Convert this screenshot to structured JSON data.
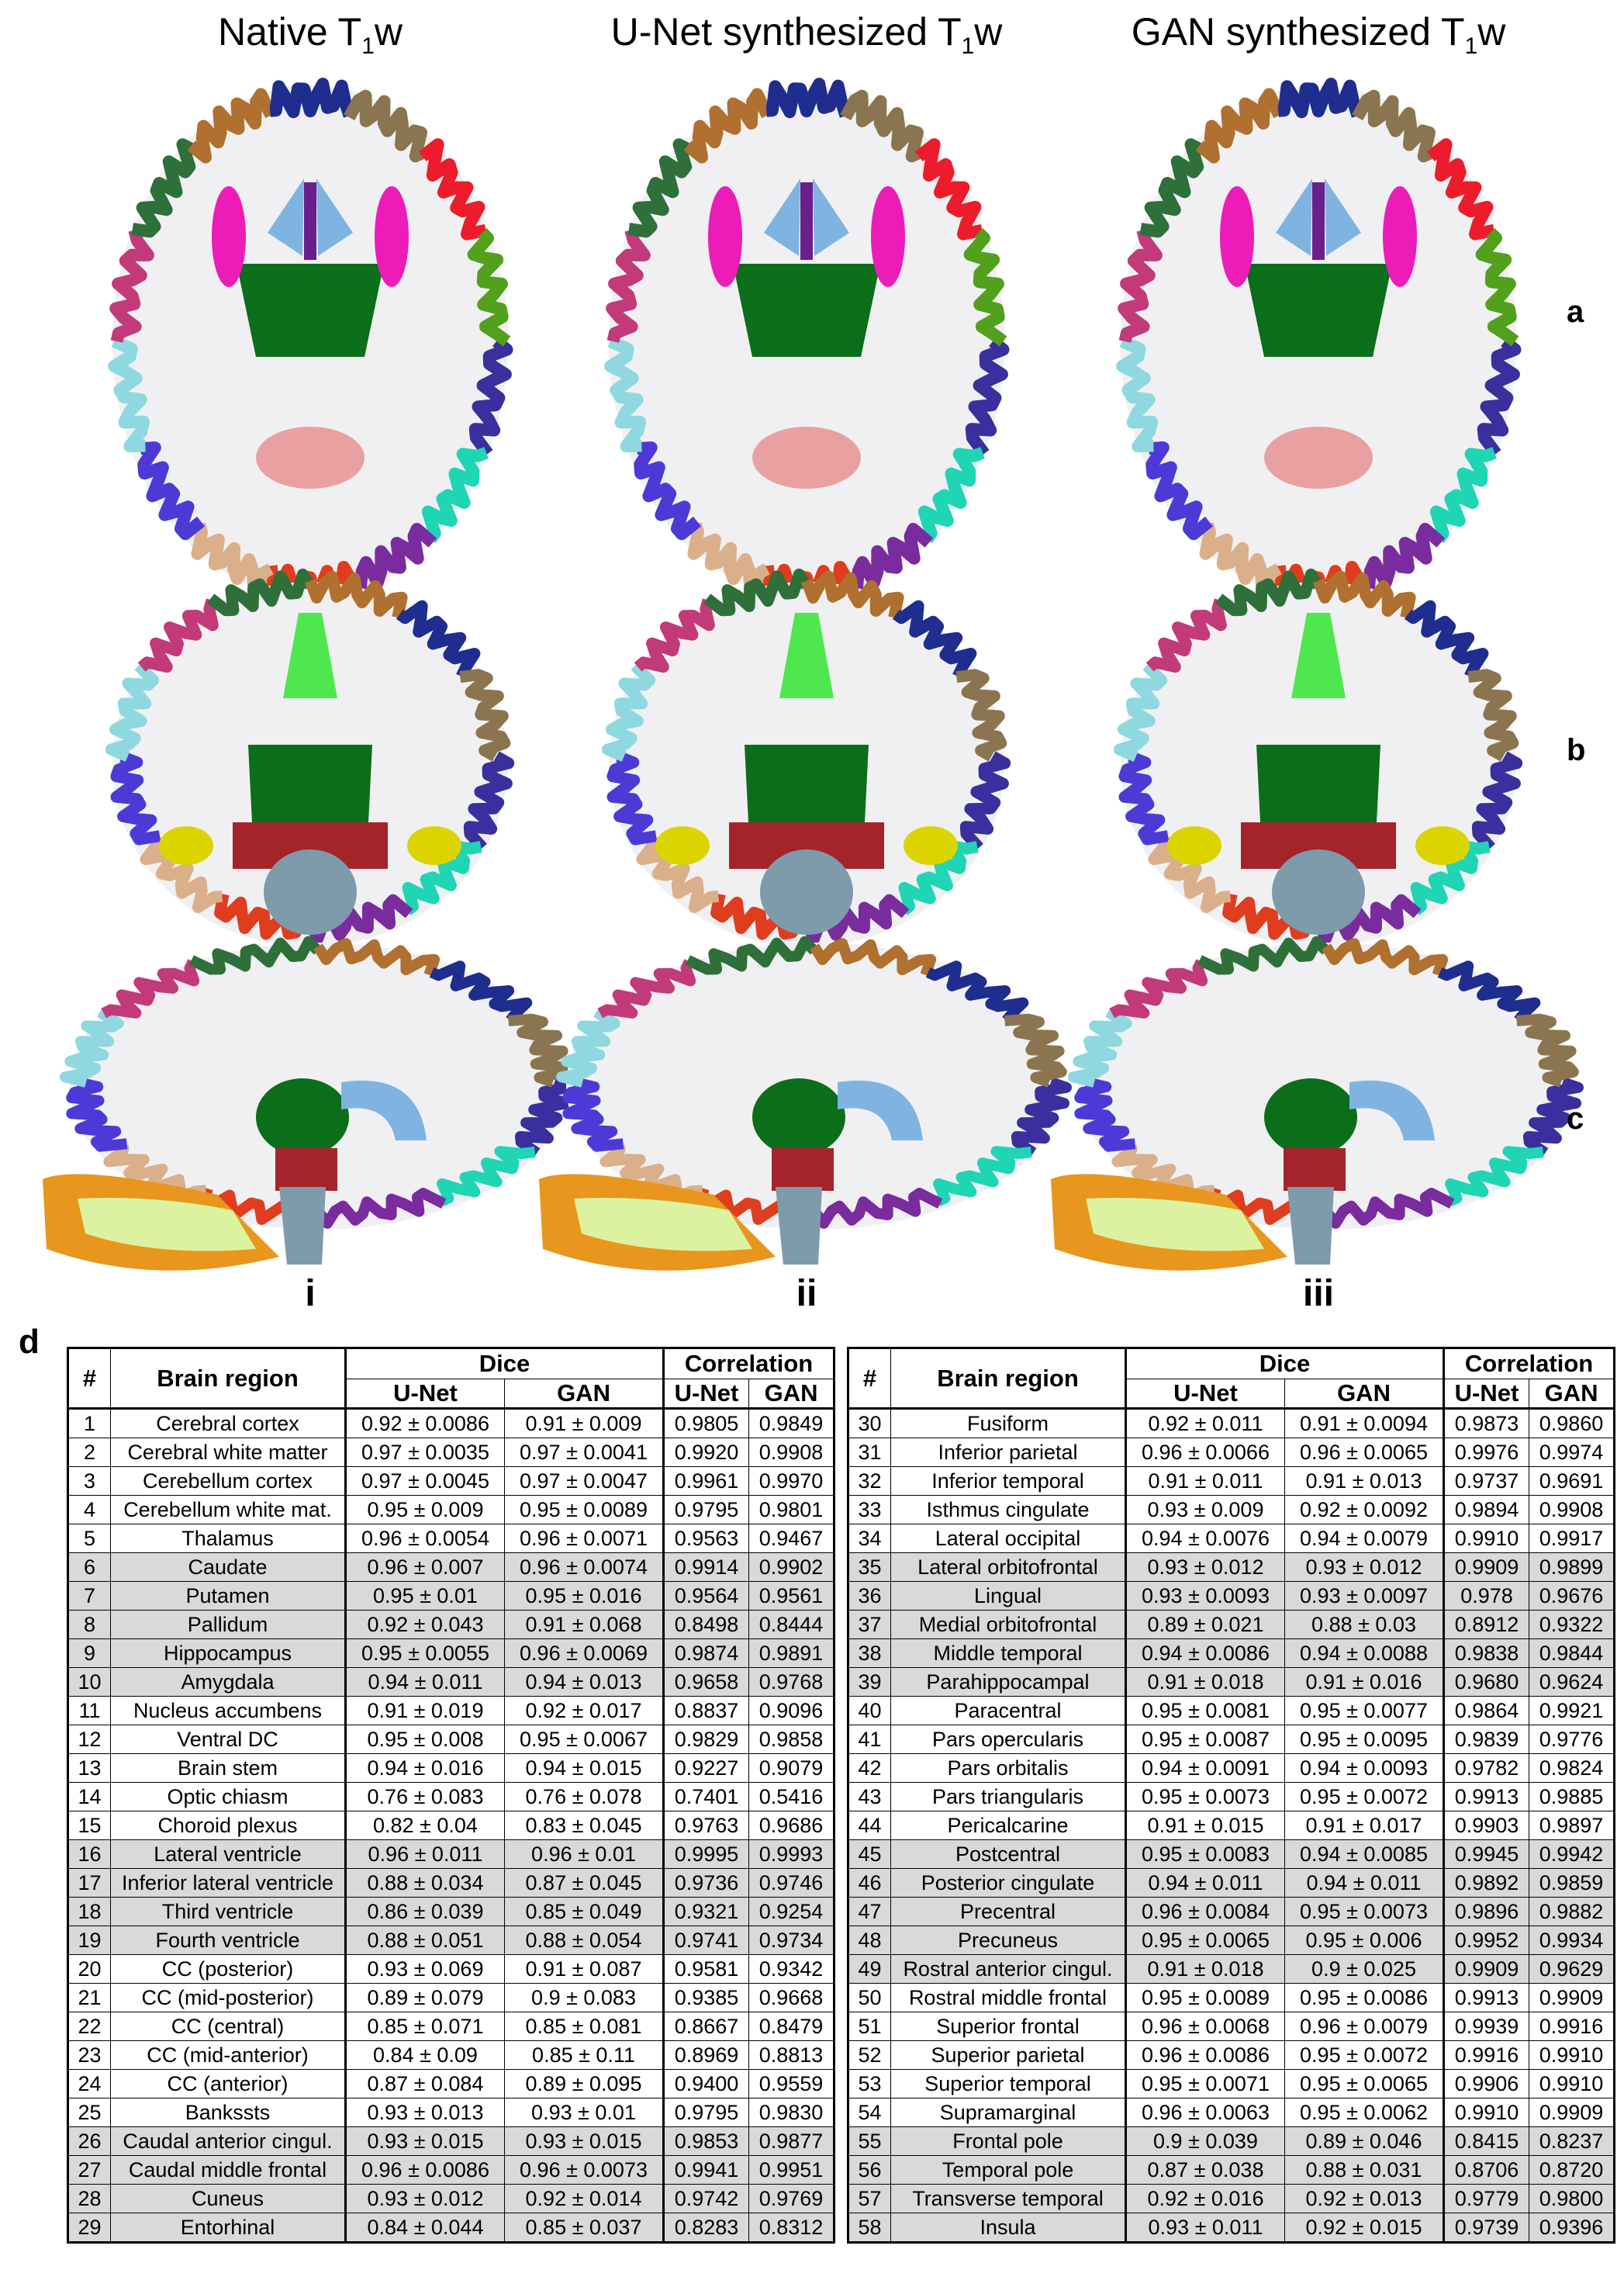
{
  "columns": [
    {
      "title": "Native T",
      "sub": "1",
      "suffix": "w",
      "roman": "i"
    },
    {
      "title": "U-Net synthesized T",
      "sub": "1",
      "suffix": "w",
      "roman": "ii"
    },
    {
      "title": "GAN synthesized T",
      "sub": "1",
      "suffix": "w",
      "roman": "iii"
    }
  ],
  "rows": [
    {
      "letter": "a",
      "view": "axial"
    },
    {
      "letter": "b",
      "view": "coronal"
    },
    {
      "letter": "c",
      "view": "sagittal"
    }
  ],
  "panel_d_label": "d",
  "table": {
    "headers": {
      "num": "#",
      "region": "Brain region",
      "dice": "Dice",
      "correlation": "Correlation",
      "unet": "U-Net",
      "gan": "GAN"
    },
    "left": [
      {
        "n": "1",
        "region": "Cerebral cortex",
        "dice_unet": "0.92 ± 0.0086",
        "dice_gan": "0.91 ± 0.009",
        "corr_unet": "0.9805",
        "corr_gan": "0.9849",
        "shaded": false
      },
      {
        "n": "2",
        "region": "Cerebral white matter",
        "dice_unet": "0.97 ± 0.0035",
        "dice_gan": "0.97 ± 0.0041",
        "corr_unet": "0.9920",
        "corr_gan": "0.9908",
        "shaded": false
      },
      {
        "n": "3",
        "region": "Cerebellum cortex",
        "dice_unet": "0.97 ± 0.0045",
        "dice_gan": "0.97 ± 0.0047",
        "corr_unet": "0.9961",
        "corr_gan": "0.9970",
        "shaded": false
      },
      {
        "n": "4",
        "region": "Cerebellum white mat.",
        "dice_unet": "0.95 ± 0.009",
        "dice_gan": "0.95 ± 0.0089",
        "corr_unet": "0.9795",
        "corr_gan": "0.9801",
        "shaded": false
      },
      {
        "n": "5",
        "region": "Thalamus",
        "dice_unet": "0.96 ± 0.0054",
        "dice_gan": "0.96 ± 0.0071",
        "corr_unet": "0.9563",
        "corr_gan": "0.9467",
        "shaded": false
      },
      {
        "n": "6",
        "region": "Caudate",
        "dice_unet": "0.96 ± 0.007",
        "dice_gan": "0.96 ± 0.0074",
        "corr_unet": "0.9914",
        "corr_gan": "0.9902",
        "shaded": true
      },
      {
        "n": "7",
        "region": "Putamen",
        "dice_unet": "0.95 ± 0.01",
        "dice_gan": "0.95 ± 0.016",
        "corr_unet": "0.9564",
        "corr_gan": "0.9561",
        "shaded": true
      },
      {
        "n": "8",
        "region": "Pallidum",
        "dice_unet": "0.92 ± 0.043",
        "dice_gan": "0.91 ± 0.068",
        "corr_unet": "0.8498",
        "corr_gan": "0.8444",
        "shaded": true
      },
      {
        "n": "9",
        "region": "Hippocampus",
        "dice_unet": "0.95 ± 0.0055",
        "dice_gan": "0.96 ± 0.0069",
        "corr_unet": "0.9874",
        "corr_gan": "0.9891",
        "shaded": true
      },
      {
        "n": "10",
        "region": "Amygdala",
        "dice_unet": "0.94 ± 0.011",
        "dice_gan": "0.94 ± 0.013",
        "corr_unet": "0.9658",
        "corr_gan": "0.9768",
        "shaded": true
      },
      {
        "n": "11",
        "region": "Nucleus accumbens",
        "dice_unet": "0.91 ± 0.019",
        "dice_gan": "0.92 ± 0.017",
        "corr_unet": "0.8837",
        "corr_gan": "0.9096",
        "shaded": false
      },
      {
        "n": "12",
        "region": "Ventral DC",
        "dice_unet": "0.95 ± 0.008",
        "dice_gan": "0.95 ± 0.0067",
        "corr_unet": "0.9829",
        "corr_gan": "0.9858",
        "shaded": false
      },
      {
        "n": "13",
        "region": "Brain stem",
        "dice_unet": "0.94 ± 0.016",
        "dice_gan": "0.94 ± 0.015",
        "corr_unet": "0.9227",
        "corr_gan": "0.9079",
        "shaded": false
      },
      {
        "n": "14",
        "region": "Optic chiasm",
        "dice_unet": "0.76 ± 0.083",
        "dice_gan": "0.76 ± 0.078",
        "corr_unet": "0.7401",
        "corr_gan": "0.5416",
        "shaded": false
      },
      {
        "n": "15",
        "region": "Choroid plexus",
        "dice_unet": "0.82 ± 0.04",
        "dice_gan": "0.83 ± 0.045",
        "corr_unet": "0.9763",
        "corr_gan": "0.9686",
        "shaded": false
      },
      {
        "n": "16",
        "region": "Lateral ventricle",
        "dice_unet": "0.96 ± 0.011",
        "dice_gan": "0.96 ± 0.01",
        "corr_unet": "0.9995",
        "corr_gan": "0.9993",
        "shaded": true
      },
      {
        "n": "17",
        "region": "Inferior lateral ventricle",
        "dice_unet": "0.88 ± 0.034",
        "dice_gan": "0.87 ± 0.045",
        "corr_unet": "0.9736",
        "corr_gan": "0.9746",
        "shaded": true
      },
      {
        "n": "18",
        "region": "Third ventricle",
        "dice_unet": "0.86 ± 0.039",
        "dice_gan": "0.85 ± 0.049",
        "corr_unet": "0.9321",
        "corr_gan": "0.9254",
        "shaded": true
      },
      {
        "n": "19",
        "region": "Fourth ventricle",
        "dice_unet": "0.88 ± 0.051",
        "dice_gan": "0.88 ± 0.054",
        "corr_unet": "0.9741",
        "corr_gan": "0.9734",
        "shaded": true
      },
      {
        "n": "20",
        "region": "CC (posterior)",
        "dice_unet": "0.93 ± 0.069",
        "dice_gan": "0.91 ± 0.087",
        "corr_unet": "0.9581",
        "corr_gan": "0.9342",
        "shaded": false
      },
      {
        "n": "21",
        "region": "CC (mid-posterior)",
        "dice_unet": "0.89 ± 0.079",
        "dice_gan": "0.9 ± 0.083",
        "corr_unet": "0.9385",
        "corr_gan": "0.9668",
        "shaded": false
      },
      {
        "n": "22",
        "region": "CC (central)",
        "dice_unet": "0.85 ± 0.071",
        "dice_gan": "0.85 ± 0.081",
        "corr_unet": "0.8667",
        "corr_gan": "0.8479",
        "shaded": false
      },
      {
        "n": "23",
        "region": "CC (mid-anterior)",
        "dice_unet": "0.84 ± 0.09",
        "dice_gan": "0.85 ± 0.11",
        "corr_unet": "0.8969",
        "corr_gan": "0.8813",
        "shaded": false
      },
      {
        "n": "24",
        "region": "CC (anterior)",
        "dice_unet": "0.87 ± 0.084",
        "dice_gan": "0.89 ± 0.095",
        "corr_unet": "0.9400",
        "corr_gan": "0.9559",
        "shaded": false
      },
      {
        "n": "25",
        "region": "Bankssts",
        "dice_unet": "0.93 ± 0.013",
        "dice_gan": "0.93 ± 0.01",
        "corr_unet": "0.9795",
        "corr_gan": "0.9830",
        "shaded": false
      },
      {
        "n": "26",
        "region": "Caudal anterior cingul.",
        "dice_unet": "0.93 ± 0.015",
        "dice_gan": "0.93 ± 0.015",
        "corr_unet": "0.9853",
        "corr_gan": "0.9877",
        "shaded": true
      },
      {
        "n": "27",
        "region": "Caudal middle frontal",
        "dice_unet": "0.96 ± 0.0086",
        "dice_gan": "0.96 ± 0.0073",
        "corr_unet": "0.9941",
        "corr_gan": "0.9951",
        "shaded": true
      },
      {
        "n": "28",
        "region": "Cuneus",
        "dice_unet": "0.93 ± 0.012",
        "dice_gan": "0.92 ± 0.014",
        "corr_unet": "0.9742",
        "corr_gan": "0.9769",
        "shaded": true
      },
      {
        "n": "29",
        "region": "Entorhinal",
        "dice_unet": "0.84 ± 0.044",
        "dice_gan": "0.85 ± 0.037",
        "corr_unet": "0.8283",
        "corr_gan": "0.8312",
        "shaded": true
      }
    ],
    "right": [
      {
        "n": "30",
        "region": "Fusiform",
        "dice_unet": "0.92 ± 0.011",
        "dice_gan": "0.91 ± 0.0094",
        "corr_unet": "0.9873",
        "corr_gan": "0.9860",
        "shaded": false
      },
      {
        "n": "31",
        "region": "Inferior parietal",
        "dice_unet": "0.96 ± 0.0066",
        "dice_gan": "0.96 ± 0.0065",
        "corr_unet": "0.9976",
        "corr_gan": "0.9974",
        "shaded": false
      },
      {
        "n": "32",
        "region": "Inferior temporal",
        "dice_unet": "0.91 ± 0.011",
        "dice_gan": "0.91 ± 0.013",
        "corr_unet": "0.9737",
        "corr_gan": "0.9691",
        "shaded": false
      },
      {
        "n": "33",
        "region": "Isthmus cingulate",
        "dice_unet": "0.93 ± 0.009",
        "dice_gan": "0.92 ± 0.0092",
        "corr_unet": "0.9894",
        "corr_gan": "0.9908",
        "shaded": false
      },
      {
        "n": "34",
        "region": "Lateral occipital",
        "dice_unet": "0.94 ± 0.0076",
        "dice_gan": "0.94 ± 0.0079",
        "corr_unet": "0.9910",
        "corr_gan": "0.9917",
        "shaded": false
      },
      {
        "n": "35",
        "region": "Lateral orbitofrontal",
        "dice_unet": "0.93 ± 0.012",
        "dice_gan": "0.93 ± 0.012",
        "corr_unet": "0.9909",
        "corr_gan": "0.9899",
        "shaded": true
      },
      {
        "n": "36",
        "region": "Lingual",
        "dice_unet": "0.93 ± 0.0093",
        "dice_gan": "0.93 ± 0.0097",
        "corr_unet": "0.978",
        "corr_gan": "0.9676",
        "shaded": true
      },
      {
        "n": "37",
        "region": "Medial orbitofrontal",
        "dice_unet": "0.89 ± 0.021",
        "dice_gan": "0.88 ± 0.03",
        "corr_unet": "0.8912",
        "corr_gan": "0.9322",
        "shaded": true
      },
      {
        "n": "38",
        "region": "Middle temporal",
        "dice_unet": "0.94 ± 0.0086",
        "dice_gan": "0.94 ± 0.0088",
        "corr_unet": "0.9838",
        "corr_gan": "0.9844",
        "shaded": true
      },
      {
        "n": "39",
        "region": "Parahippocampal",
        "dice_unet": "0.91 ± 0.018",
        "dice_gan": "0.91 ± 0.016",
        "corr_unet": "0.9680",
        "corr_gan": "0.9624",
        "shaded": true
      },
      {
        "n": "40",
        "region": "Paracentral",
        "dice_unet": "0.95 ± 0.0081",
        "dice_gan": "0.95 ± 0.0077",
        "corr_unet": "0.9864",
        "corr_gan": "0.9921",
        "shaded": false
      },
      {
        "n": "41",
        "region": "Pars opercularis",
        "dice_unet": "0.95 ± 0.0087",
        "dice_gan": "0.95 ± 0.0095",
        "corr_unet": "0.9839",
        "corr_gan": "0.9776",
        "shaded": false
      },
      {
        "n": "42",
        "region": "Pars orbitalis",
        "dice_unet": "0.94 ± 0.0091",
        "dice_gan": "0.94 ± 0.0093",
        "corr_unet": "0.9782",
        "corr_gan": "0.9824",
        "shaded": false
      },
      {
        "n": "43",
        "region": "Pars triangularis",
        "dice_unet": "0.95 ± 0.0073",
        "dice_gan": "0.95 ± 0.0072",
        "corr_unet": "0.9913",
        "corr_gan": "0.9885",
        "shaded": false
      },
      {
        "n": "44",
        "region": "Pericalcarine",
        "dice_unet": "0.91 ± 0.015",
        "dice_gan": "0.91 ± 0.017",
        "corr_unet": "0.9903",
        "corr_gan": "0.9897",
        "shaded": false
      },
      {
        "n": "45",
        "region": "Postcentral",
        "dice_unet": "0.95 ± 0.0083",
        "dice_gan": "0.94 ± 0.0085",
        "corr_unet": "0.9945",
        "corr_gan": "0.9942",
        "shaded": true
      },
      {
        "n": "46",
        "region": "Posterior cingulate",
        "dice_unet": "0.94 ± 0.011",
        "dice_gan": "0.94 ± 0.011",
        "corr_unet": "0.9892",
        "corr_gan": "0.9859",
        "shaded": true
      },
      {
        "n": "47",
        "region": "Precentral",
        "dice_unet": "0.96 ± 0.0084",
        "dice_gan": "0.95 ± 0.0073",
        "corr_unet": "0.9896",
        "corr_gan": "0.9882",
        "shaded": true
      },
      {
        "n": "48",
        "region": "Precuneus",
        "dice_unet": "0.95 ± 0.0065",
        "dice_gan": "0.95 ± 0.006",
        "corr_unet": "0.9952",
        "corr_gan": "0.9934",
        "shaded": true
      },
      {
        "n": "49",
        "region": "Rostral anterior cingul.",
        "dice_unet": "0.91 ± 0.018",
        "dice_gan": "0.9 ± 0.025",
        "corr_unet": "0.9909",
        "corr_gan": "0.9629",
        "shaded": true
      },
      {
        "n": "50",
        "region": "Rostral middle frontal",
        "dice_unet": "0.95 ± 0.0089",
        "dice_gan": "0.95 ± 0.0086",
        "corr_unet": "0.9913",
        "corr_gan": "0.9909",
        "shaded": false
      },
      {
        "n": "51",
        "region": "Superior frontal",
        "dice_unet": "0.96 ± 0.0068",
        "dice_gan": "0.96 ± 0.0079",
        "corr_unet": "0.9939",
        "corr_gan": "0.9916",
        "shaded": false
      },
      {
        "n": "52",
        "region": "Superior parietal",
        "dice_unet": "0.96 ± 0.0086",
        "dice_gan": "0.95 ± 0.0072",
        "corr_unet": "0.9916",
        "corr_gan": "0.9910",
        "shaded": false
      },
      {
        "n": "53",
        "region": "Superior temporal",
        "dice_unet": "0.95 ± 0.0071",
        "dice_gan": "0.95 ± 0.0065",
        "corr_unet": "0.9906",
        "corr_gan": "0.9910",
        "shaded": false
      },
      {
        "n": "54",
        "region": "Supramarginal",
        "dice_unet": "0.96 ± 0.0063",
        "dice_gan": "0.95 ± 0.0062",
        "corr_unet": "0.9910",
        "corr_gan": "0.9909",
        "shaded": false
      },
      {
        "n": "55",
        "region": "Frontal pole",
        "dice_unet": "0.9 ± 0.039",
        "dice_gan": "0.89 ± 0.046",
        "corr_unet": "0.8415",
        "corr_gan": "0.8237",
        "shaded": true
      },
      {
        "n": "56",
        "region": "Temporal pole",
        "dice_unet": "0.87 ± 0.038",
        "dice_gan": "0.88 ± 0.031",
        "corr_unet": "0.8706",
        "corr_gan": "0.8720",
        "shaded": true
      },
      {
        "n": "57",
        "region": "Transverse temporal",
        "dice_unet": "0.92 ± 0.016",
        "dice_gan": "0.92 ± 0.013",
        "corr_unet": "0.9779",
        "corr_gan": "0.9800",
        "shaded": true
      },
      {
        "n": "58",
        "region": "Insula",
        "dice_unet": "0.93 ± 0.011",
        "dice_gan": "0.92 ± 0.015",
        "corr_unet": "0.9739",
        "corr_gan": "0.9396",
        "shaded": true
      }
    ]
  },
  "colors": {
    "wm": "#f0f0f2",
    "thalamus": "#0a6e1a",
    "putamen": "#ec1cb8",
    "caudate": "#7fb4e0",
    "ventricle": "#6a1f8c",
    "brainstem": "#7e9bab",
    "cerebellum_cortex": "#e8961e",
    "cerebellum_wm": "#ddf2a0",
    "ventral_dc": "#a5242a",
    "hippocampus": "#dcd400"
  }
}
